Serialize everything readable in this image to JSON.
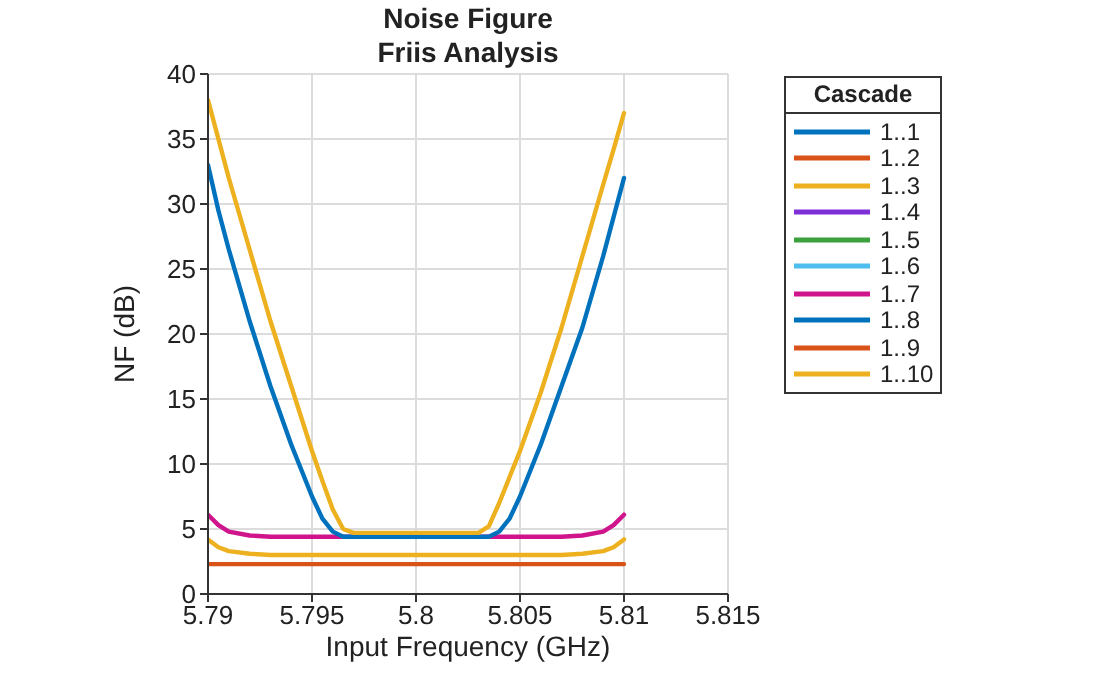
{
  "chart_data": {
    "type": "line",
    "title": "Noise Figure",
    "subtitle": "Friis Analysis",
    "xlabel": "Input Frequency (GHz)",
    "ylabel": "NF (dB)",
    "legend_title": "Cascade",
    "x": [
      5.79,
      5.7905,
      5.791,
      5.792,
      5.793,
      5.794,
      5.795,
      5.7955,
      5.796,
      5.7965,
      5.797,
      5.798,
      5.8,
      5.802,
      5.803,
      5.8035,
      5.804,
      5.8045,
      5.805,
      5.806,
      5.807,
      5.808,
      5.809,
      5.8095,
      5.81
    ],
    "series": [
      {
        "name": "1..1",
        "color": "#0072bd",
        "values": [
          null,
          null,
          null,
          null,
          null,
          null,
          null,
          null,
          null,
          null,
          null,
          null,
          null,
          null,
          null,
          null,
          null,
          null,
          null,
          null,
          null,
          null,
          null,
          null,
          null
        ]
      },
      {
        "name": "1..2",
        "color": "#d95319",
        "values": [
          null,
          null,
          null,
          null,
          null,
          null,
          null,
          null,
          null,
          null,
          null,
          null,
          null,
          null,
          null,
          null,
          null,
          null,
          null,
          null,
          null,
          null,
          null,
          null,
          null
        ]
      },
      {
        "name": "1..3",
        "color": "#edb120",
        "values": [
          4.2,
          3.6,
          3.3,
          3.1,
          3.0,
          3.0,
          3.0,
          3.0,
          3.0,
          3.0,
          3.0,
          3.0,
          3.0,
          3.0,
          3.0,
          3.0,
          3.0,
          3.0,
          3.0,
          3.0,
          3.0,
          3.1,
          3.3,
          3.6,
          4.2
        ]
      },
      {
        "name": "1..4",
        "color": "#7e2fd8",
        "values": [
          null,
          null,
          null,
          null,
          null,
          null,
          null,
          null,
          null,
          null,
          null,
          null,
          null,
          null,
          null,
          null,
          null,
          null,
          null,
          null,
          null,
          null,
          null,
          null,
          null
        ]
      },
      {
        "name": "1..5",
        "color": "#3ca03c",
        "values": [
          null,
          null,
          null,
          null,
          null,
          null,
          null,
          null,
          null,
          null,
          null,
          null,
          null,
          null,
          null,
          null,
          null,
          null,
          null,
          null,
          null,
          null,
          null,
          null,
          null
        ]
      },
      {
        "name": "1..6",
        "color": "#4dbeee",
        "values": [
          null,
          null,
          null,
          null,
          null,
          null,
          null,
          null,
          null,
          null,
          null,
          null,
          null,
          null,
          null,
          null,
          null,
          null,
          null,
          null,
          null,
          null,
          null,
          null,
          null
        ]
      },
      {
        "name": "1..7",
        "color": "#d0148c",
        "values": [
          6.1,
          5.3,
          4.8,
          4.5,
          4.4,
          4.4,
          4.4,
          4.4,
          4.4,
          4.4,
          4.4,
          null,
          null,
          null,
          4.4,
          4.4,
          4.4,
          4.4,
          4.4,
          4.4,
          4.4,
          4.5,
          4.8,
          5.3,
          6.1
        ]
      },
      {
        "name": "1..8",
        "color": "#0072bd",
        "values": [
          33,
          29.5,
          26.5,
          21,
          16,
          11.5,
          7.5,
          5.8,
          4.8,
          4.4,
          4.4,
          4.4,
          4.4,
          4.4,
          4.4,
          4.4,
          4.8,
          5.8,
          7.5,
          11.5,
          16,
          20.5,
          26,
          29,
          32
        ]
      },
      {
        "name": "1..9",
        "color": "#d95319",
        "values": [
          2.3,
          2.3,
          2.3,
          2.3,
          2.3,
          2.3,
          2.3,
          2.3,
          2.3,
          2.3,
          2.3,
          2.3,
          2.3,
          2.3,
          2.3,
          2.3,
          2.3,
          2.3,
          2.3,
          2.3,
          2.3,
          2.3,
          2.3,
          2.3,
          2.3
        ]
      },
      {
        "name": "1..10",
        "color": "#edb120",
        "values": [
          38,
          35,
          32,
          26.5,
          21,
          16,
          11,
          8.7,
          6.5,
          5.0,
          4.7,
          4.7,
          4.7,
          4.7,
          4.7,
          5.2,
          7,
          9,
          11,
          15.5,
          20.5,
          26,
          31.5,
          34.2,
          37
        ]
      }
    ],
    "xlim": [
      5.79,
      5.815
    ],
    "xticks": [
      5.79,
      5.795,
      5.8,
      5.805,
      5.81,
      5.815
    ],
    "ylim": [
      0,
      40
    ],
    "yticks": [
      0,
      5,
      10,
      15,
      20,
      25,
      30,
      35,
      40
    ],
    "grid": true,
    "legend": "right",
    "marker": "none",
    "line_style": "solid"
  }
}
